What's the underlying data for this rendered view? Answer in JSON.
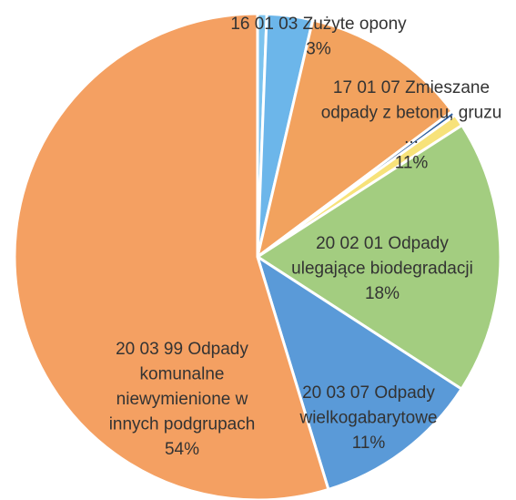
{
  "chart_data": {
    "type": "pie",
    "categories": [
      null,
      [
        "16 01 03 Zużyte opony"
      ],
      [
        "17 01 07 Zmieszane",
        "odpady z betonu, gruzu",
        "..."
      ],
      null,
      null,
      [
        "20 02 01 Odpady",
        "ulegające biodegradacji"
      ],
      [
        "20 03 07 Odpady",
        "wielkogabarytowe"
      ],
      [
        "20 03 99 Odpady",
        "komunalne",
        "niewymienione w",
        "innych podgrupach"
      ]
    ],
    "values": [
      0.6,
      3,
      11,
      0.3,
      0.8,
      18,
      11,
      54
    ],
    "value_labels": [
      null,
      "3%",
      "11%",
      null,
      null,
      "18%",
      "11%",
      "54%"
    ],
    "colors": [
      "#7cc3ee",
      "#6cb6ea",
      "#f2a25e",
      "#2f5f9e",
      "#f7e27a",
      "#a3cd80",
      "#5a9ad8",
      "#f4a062"
    ]
  }
}
